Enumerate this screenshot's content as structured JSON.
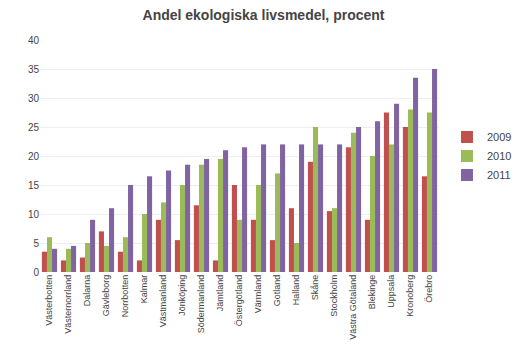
{
  "chart_data": {
    "type": "bar",
    "title": "Andel ekologiska livsmedel, procent",
    "categories": [
      "Västerbotten",
      "Västernorrland",
      "Dalarna",
      "Gävleborg",
      "Norrbotten",
      "Kalmar",
      "Västmanland",
      "Jönköping",
      "Södermanland",
      "Jämtland",
      "Östergötland",
      "Värmland",
      "Gotland",
      "Halland",
      "Skåne",
      "Stockholm",
      "Västra Götaland",
      "Blekinge",
      "Uppsala",
      "Kronoberg",
      "Örebro"
    ],
    "series": [
      {
        "name": "2009",
        "color": "#C0504D",
        "values": [
          3.5,
          2.0,
          2.5,
          7.0,
          3.5,
          2.0,
          9.0,
          5.5,
          11.5,
          2.0,
          15.0,
          9.0,
          5.5,
          11.0,
          19.0,
          10.5,
          21.5,
          9.0,
          27.5,
          25.0,
          16.5
        ]
      },
      {
        "name": "2010",
        "color": "#9BBB59",
        "values": [
          6.0,
          4.0,
          5.0,
          4.5,
          6.0,
          10.0,
          12.0,
          15.0,
          18.5,
          19.5,
          9.0,
          15.0,
          17.0,
          5.0,
          25.0,
          11.0,
          24.0,
          20.0,
          22.0,
          28.0,
          27.5
        ]
      },
      {
        "name": "2011",
        "color": "#8064A2",
        "values": [
          4.0,
          4.5,
          9.0,
          11.0,
          15.0,
          16.5,
          17.5,
          18.5,
          19.5,
          21.0,
          21.5,
          22.0,
          22.0,
          22.0,
          22.0,
          22.0,
          25.0,
          26.0,
          29.0,
          33.5,
          35.0
        ]
      }
    ],
    "ylim": [
      0,
      40
    ],
    "yticks": [
      0,
      5,
      10,
      15,
      20,
      25,
      30,
      35,
      40
    ],
    "grid": true,
    "legend": "right"
  }
}
